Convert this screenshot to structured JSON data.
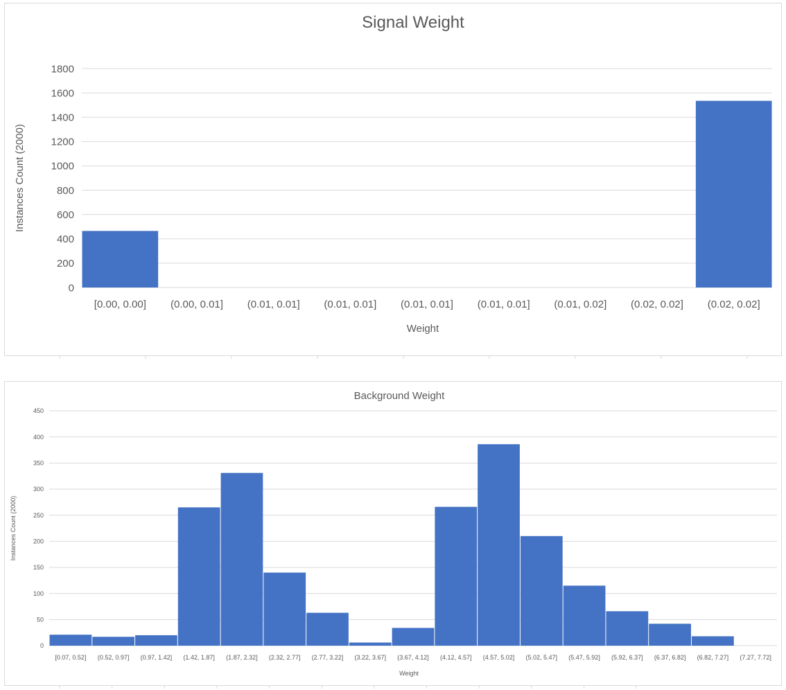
{
  "colors": {
    "bar": "#4472C4",
    "grid": "#d9d9d9",
    "text": "#595959"
  },
  "chart_data": [
    {
      "type": "bar",
      "title": "Signal Weight",
      "xlabel": "Weight",
      "ylabel": "Instances Count (2000)",
      "ylim": [
        0,
        1800
      ],
      "yticks": [
        0,
        200,
        400,
        600,
        800,
        1000,
        1200,
        1400,
        1600,
        1800
      ],
      "grid": true,
      "categories": [
        "[0.00, 0.00]",
        "(0.00, 0.01]",
        "(0.01, 0.01]",
        "(0.01, 0.01]",
        "(0.01, 0.01]",
        "(0.01, 0.01]",
        "(0.01, 0.02]",
        "(0.02, 0.02]",
        "(0.02, 0.02]"
      ],
      "values": [
        465,
        0,
        0,
        0,
        0,
        0,
        0,
        0,
        1535
      ]
    },
    {
      "type": "bar",
      "title": "Background Weight",
      "xlabel": "Weight",
      "ylabel": "Instances Count (2000)",
      "ylim": [
        0,
        450
      ],
      "yticks": [
        0,
        50,
        100,
        150,
        200,
        250,
        300,
        350,
        400,
        450
      ],
      "grid": true,
      "categories": [
        "[0.07, 0.52]",
        "(0.52, 0.97]",
        "(0.97, 1.42]",
        "(1.42, 1.87]",
        "(1.87, 2.32]",
        "(2.32, 2.77]",
        "(2.77, 3.22]",
        "(3.22, 3.67]",
        "(3.67, 4.12]",
        "(4.12, 4.57]",
        "(4.57, 5.02]",
        "(5.02, 5.47]",
        "(5.47, 5.92]",
        "(5.92, 6.37]",
        "(6.37, 6.82]",
        "(6.82, 7.27]",
        "(7.27, 7.72]"
      ],
      "values": [
        21,
        17,
        20,
        265,
        331,
        140,
        63,
        6,
        34,
        266,
        386,
        210,
        115,
        66,
        42,
        18,
        0
      ]
    }
  ]
}
